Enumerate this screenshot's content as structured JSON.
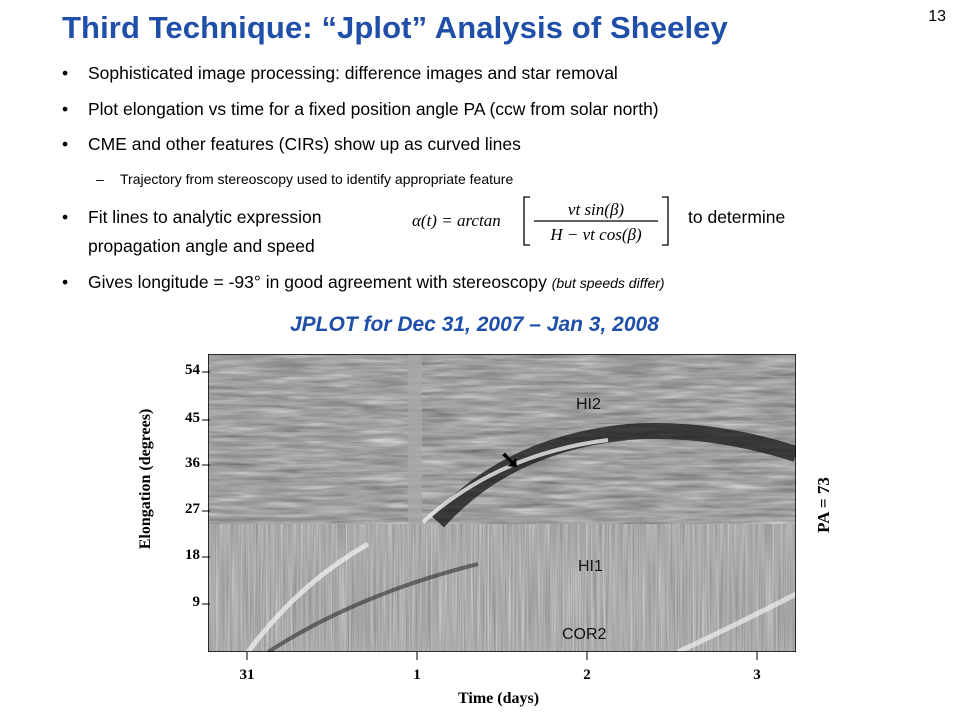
{
  "slide": {
    "title": "Third Technique: “Jplot” Analysis of Sheeley",
    "number": "13",
    "bullet_symbol": "•",
    "dash_symbol": "–",
    "bullets": [
      "Sophisticated image processing: difference images and star removal",
      "Plot elongation vs time for a fixed position angle PA (ccw from solar north)",
      "CME and other features (CIRs) show up as curved lines"
    ],
    "sub_bullet": "Trajectory from stereoscopy used to identify appropriate feature",
    "fit_bullet": {
      "before": "Fit lines to analytic expression",
      "after": "to determine",
      "line2": "propagation angle and speed"
    },
    "formula": {
      "lhs": "α(t) = arctan",
      "numerator": "vt sin(β)",
      "denominator": "H − vt cos(β)"
    },
    "last_bullet": {
      "text": "Gives longitude = -93° in good agreement with stereoscopy",
      "note": "(but speeds differ)"
    }
  },
  "plot": {
    "title": "JPLOT for Dec 31, 2007 – Jan 3, 2008",
    "ylabel": "Elongation (degrees)",
    "xlabel": "Time (days)",
    "side_label": "PA = 73",
    "yticks": [
      "54",
      "45",
      "36",
      "27",
      "18",
      "9"
    ],
    "xticks": [
      "31",
      "1",
      "2",
      "3"
    ],
    "regions": {
      "hi2": "HI2",
      "hi1": "HI1",
      "cor2": "COR2"
    },
    "arrow": "➘",
    "colors": {
      "title_blue": "#1f4fa8"
    }
  }
}
